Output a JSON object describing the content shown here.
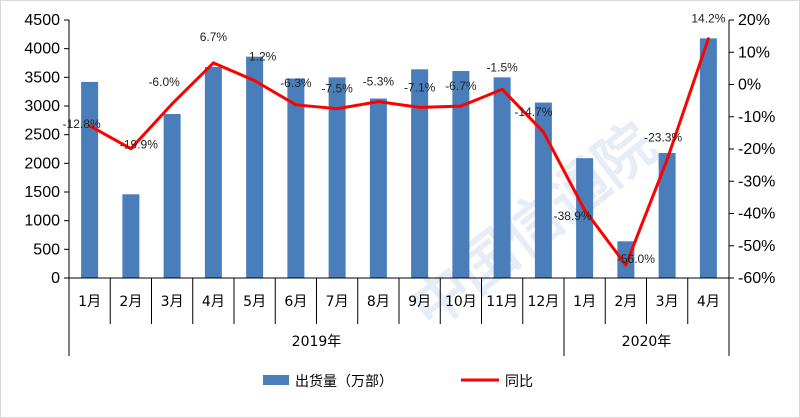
{
  "chart_data": {
    "type": "bar",
    "categories": [
      "1月",
      "2月",
      "3月",
      "4月",
      "5月",
      "6月",
      "7月",
      "8月",
      "9月",
      "10月",
      "11月",
      "12月",
      "1月",
      "2月",
      "3月",
      "4月"
    ],
    "groups": [
      {
        "label": "2019年",
        "start": 0,
        "end": 11
      },
      {
        "label": "2020年",
        "start": 12,
        "end": 15
      }
    ],
    "series": [
      {
        "name": "出货量（万部）",
        "type": "bar",
        "axis": "left",
        "color": "#4a7ebb",
        "values": [
          3420,
          1460,
          2860,
          3680,
          3860,
          3480,
          3500,
          3130,
          3640,
          3610,
          3500,
          3060,
          2090,
          640,
          2180,
          4180
        ]
      },
      {
        "name": "同比",
        "type": "line",
        "axis": "right",
        "color": "#ff0000",
        "values": [
          -12.8,
          -19.9,
          -6.0,
          6.7,
          1.2,
          -6.3,
          -7.5,
          -5.3,
          -7.1,
          -6.7,
          -1.5,
          -14.7,
          -38.9,
          -56.0,
          -23.3,
          14.2
        ],
        "labels": [
          "-12.8%",
          "-19.9%",
          "-6.0%",
          "6.7%",
          "1.2%",
          "-6.3%",
          "-7.5%",
          "-5.3%",
          "-7.1%",
          "-6.7%",
          "-1.5%",
          "-14.7%",
          "-38.9%",
          "-56.0%",
          "-23.3%",
          "14.2%"
        ]
      }
    ],
    "y_left": {
      "min": 0,
      "max": 4500,
      "ticks": [
        0,
        500,
        1000,
        1500,
        2000,
        2500,
        3000,
        3500,
        4000,
        4500
      ],
      "tick_labels": [
        "0",
        "500",
        "1000",
        "1500",
        "2000",
        "2500",
        "3000",
        "3500",
        "4000",
        "4500"
      ]
    },
    "y_right": {
      "min": -60,
      "max": 20,
      "ticks": [
        -60,
        -50,
        -40,
        -30,
        -20,
        -10,
        0,
        10,
        20
      ],
      "tick_labels": [
        "-60%",
        "-50%",
        "-40%",
        "-30%",
        "-20%",
        "-10%",
        "0%",
        "10%",
        "20%"
      ]
    },
    "legend_position": "bottom",
    "grid": false,
    "title": "",
    "xlabel": "",
    "ylabel": ""
  },
  "watermark": {
    "text": "中国信通院"
  }
}
